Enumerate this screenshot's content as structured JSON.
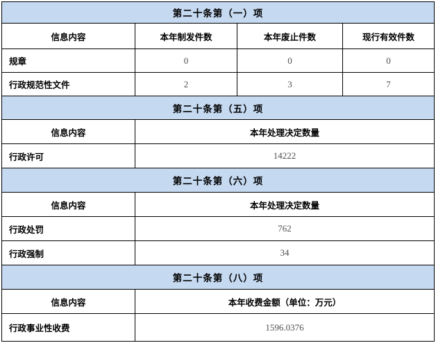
{
  "colors": {
    "section_header_bg": "#c5d9f1",
    "border": "#000000",
    "label_text": "#000000",
    "value_text": "#4d4d4d",
    "background": "#ffffff"
  },
  "sections": [
    {
      "title": "第二十条第（一）项",
      "columns": [
        "信息内容",
        "本年制发件数",
        "本年废止件数",
        "现行有效件数"
      ],
      "rows": [
        {
          "label": "规章",
          "values": [
            "0",
            "0",
            "0"
          ]
        },
        {
          "label": "行政规范性文件",
          "values": [
            "2",
            "3",
            "7"
          ]
        }
      ]
    },
    {
      "title": "第二十条第（五）项",
      "columns": [
        "信息内容",
        "本年处理决定数量"
      ],
      "rows": [
        {
          "label": "行政许可",
          "values": [
            "14222"
          ]
        }
      ]
    },
    {
      "title": "第二十条第（六）项",
      "columns": [
        "信息内容",
        "本年处理决定数量"
      ],
      "rows": [
        {
          "label": "行政处罚",
          "values": [
            "762"
          ]
        },
        {
          "label": "行政强制",
          "values": [
            "34"
          ]
        }
      ]
    },
    {
      "title": "第二十条第（八）项",
      "columns": [
        "信息内容",
        "本年收费金额（单位：万元）"
      ],
      "rows": [
        {
          "label": "行政事业性收费",
          "values": [
            "1596.0376"
          ]
        }
      ]
    }
  ]
}
